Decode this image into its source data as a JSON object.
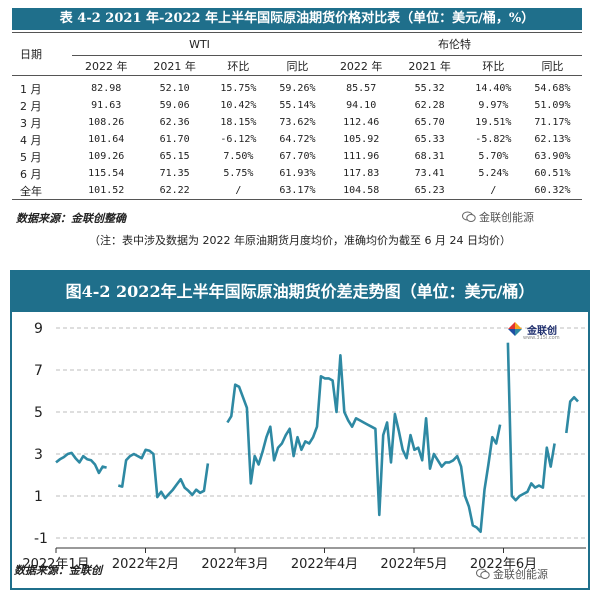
{
  "table": {
    "title": "表 4-2 2021 年-2022 年上半年国际原油期货价格对比表（单位：美元/桶，%）",
    "row_header": "日期",
    "groups": [
      "WTI",
      "布伦特"
    ],
    "columns": [
      "2022 年",
      "2021 年",
      "环比",
      "同比",
      "2022 年",
      "2021 年",
      "环比",
      "同比"
    ],
    "rows": [
      {
        "month": "1 月",
        "cells": [
          "82.98",
          "52.10",
          "15.75%",
          "59.26%",
          "85.57",
          "55.32",
          "14.40%",
          "54.68%"
        ]
      },
      {
        "month": "2 月",
        "cells": [
          "91.63",
          "59.06",
          "10.42%",
          "55.14%",
          "94.10",
          "62.28",
          "9.97%",
          "51.09%"
        ]
      },
      {
        "month": "3 月",
        "cells": [
          "108.26",
          "62.36",
          "18.15%",
          "73.62%",
          "112.46",
          "65.70",
          "19.51%",
          "71.17%"
        ]
      },
      {
        "month": "4 月",
        "cells": [
          "101.64",
          "61.70",
          "-6.12%",
          "64.72%",
          "105.92",
          "65.33",
          "-5.82%",
          "62.13%"
        ]
      },
      {
        "month": "5 月",
        "cells": [
          "109.26",
          "65.15",
          "7.50%",
          "67.70%",
          "111.96",
          "68.31",
          "5.70%",
          "63.90%"
        ]
      },
      {
        "month": "6 月",
        "cells": [
          "115.54",
          "71.35",
          "5.75%",
          "61.93%",
          "117.83",
          "73.41",
          "5.24%",
          "60.51%"
        ]
      },
      {
        "month": "全年",
        "cells": [
          "101.52",
          "62.22",
          "/",
          "63.17%",
          "104.58",
          "65.23",
          "/",
          "60.32%"
        ]
      }
    ],
    "source": "数据来源：金联创整确",
    "note": "（注：表中涉及数据为 2022 年原油期货月度均价，准确均价为截至 6 月 24 日均价）"
  },
  "watermark": {
    "text": "金联创能源",
    "icon": "wechat-icon"
  },
  "chart": {
    "title": "图4-2   2022年上半年国际原油期货价差走势图（单位：美元/桶）",
    "source": "数据来源：金联创",
    "logo_text": "金联创",
    "logo_url": "www.315i.com"
  },
  "chart_data": {
    "type": "line",
    "series": [
      {
        "values": [
          2.6,
          2.75,
          2.85,
          3.0,
          3.05,
          2.8,
          2.6,
          2.9,
          2.75,
          2.7,
          2.5,
          2.1,
          2.4,
          2.35,
          null,
          null,
          1.5,
          1.45,
          2.7,
          2.9,
          3.0,
          2.9,
          2.8,
          3.2,
          3.15,
          3.0,
          0.95,
          1.2,
          0.9,
          1.1,
          1.3,
          1.55,
          1.8,
          1.4,
          1.25,
          1.05,
          1.3,
          1.15,
          1.25,
          2.55,
          null,
          null,
          null,
          null,
          4.5,
          4.8,
          6.3,
          6.2,
          5.7,
          5.2,
          1.6,
          2.9,
          2.5,
          3.1,
          3.8,
          4.3,
          2.7,
          3.3,
          3.5,
          3.9,
          4.2,
          2.9,
          3.8,
          3.2,
          3.6,
          3.5,
          3.8,
          4.3,
          6.7,
          6.6,
          6.6,
          6.5,
          5.0,
          7.7,
          5.0,
          4.6,
          4.3,
          4.7,
          4.6,
          4.5,
          4.4,
          4.3,
          4.2,
          0.1,
          3.9,
          4.5,
          2.6,
          4.9,
          4.1,
          3.2,
          2.8,
          3.9,
          3.2,
          3.3,
          2.7,
          4.7,
          2.3,
          3.0,
          2.7,
          2.4,
          2.6,
          2.6,
          2.7,
          2.9,
          2.4,
          1.0,
          0.5,
          -0.4,
          -0.5,
          -0.7,
          1.3,
          2.5,
          3.8,
          3.5,
          4.4,
          null,
          8.3,
          1.0,
          0.8,
          1.0,
          1.1,
          1.2,
          1.6,
          1.4,
          1.5,
          1.4,
          3.3,
          2.4,
          3.5,
          null,
          null,
          4.0,
          5.5,
          5.7,
          5.5
        ]
      }
    ],
    "x_ticks": [
      "2022年1月",
      "2022年2月",
      "2022年3月",
      "2022年4月",
      "2022年5月",
      "2022年6月"
    ],
    "y_ticks": [
      -1,
      1,
      3,
      5,
      7,
      9
    ],
    "ylim": [
      -1,
      9
    ],
    "grid": "horizontal-dashed",
    "line_color": "#2e89a3"
  }
}
